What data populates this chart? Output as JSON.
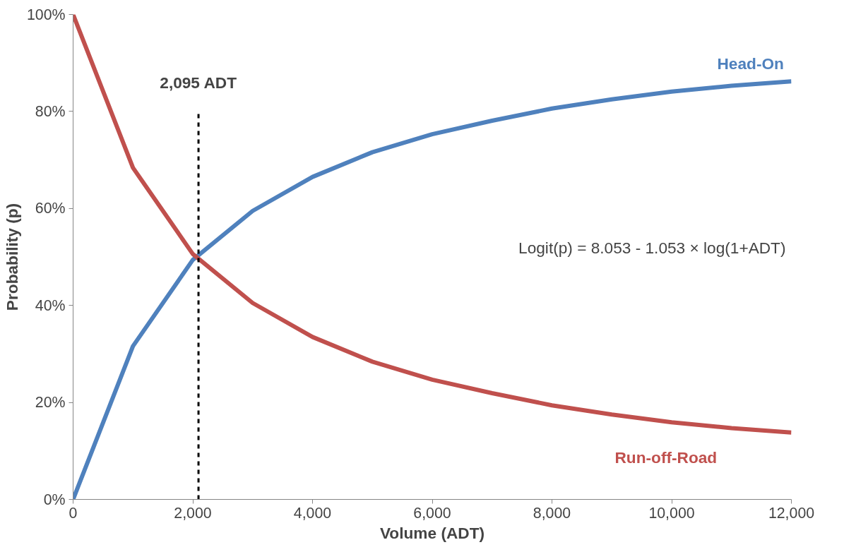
{
  "chart_data": {
    "type": "line",
    "xlabel": "Volume (ADT)",
    "ylabel": "Probability (p)",
    "x": [
      0,
      1000,
      2000,
      3000,
      4000,
      5000,
      6000,
      7000,
      8000,
      9000,
      10000,
      11000,
      12000
    ],
    "series": [
      {
        "name": "Head-On",
        "color": "#4f81bd",
        "values": [
          0,
          31.6,
          49.4,
          59.5,
          66.5,
          71.6,
          75.3,
          78.1,
          80.6,
          82.5,
          84.1,
          85.3,
          86.2
        ]
      },
      {
        "name": "Run-off-Road",
        "color": "#c0504d",
        "values": [
          100,
          68.4,
          50.6,
          40.5,
          33.5,
          28.4,
          24.7,
          21.9,
          19.4,
          17.5,
          15.9,
          14.7,
          13.8
        ]
      }
    ],
    "xlim": [
      0,
      12000
    ],
    "ylim": [
      0,
      100
    ],
    "xticks": [
      0,
      {
        "value": 2000,
        "label": "2,000"
      },
      {
        "value": 4000,
        "label": "4,000"
      },
      {
        "value": 6000,
        "label": "6,000"
      },
      {
        "value": 8000,
        "label": "8,000"
      },
      {
        "value": 10000,
        "label": "10,000"
      },
      {
        "value": 12000,
        "label": "12,000"
      }
    ],
    "yticks": [
      {
        "value": 0,
        "label": "0%"
      },
      {
        "value": 20,
        "label": "20%"
      },
      {
        "value": 40,
        "label": "40%"
      },
      {
        "value": 60,
        "label": "60%"
      },
      {
        "value": 80,
        "label": "80%"
      },
      {
        "value": 100,
        "label": "100%"
      }
    ],
    "ref_lines": [
      {
        "axis": "x",
        "value": 2095,
        "label": "2,095 ADT",
        "color": "#000000",
        "line_style": "dashed"
      }
    ],
    "annotations": [
      "Logit(p) = 8.053 - 1.053 × log(1+ADT)"
    ],
    "grid": false,
    "marker": "none",
    "line_style": "solid"
  }
}
